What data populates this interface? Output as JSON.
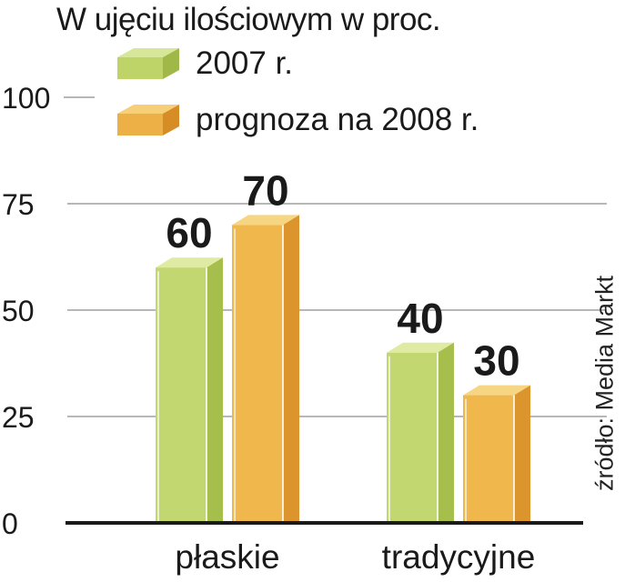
{
  "chart_data": {
    "type": "bar",
    "title": "W ujęciu ilościowym w proc.",
    "categories": [
      "płaskie",
      "tradycyjne"
    ],
    "series": [
      {
        "name": "2007 r.",
        "values": [
          60,
          40
        ],
        "color": "#b6cf5c"
      },
      {
        "name": "prognoza na 2008 r.",
        "values": [
          70,
          30
        ],
        "color": "#e9a43a"
      }
    ],
    "yticks": [
      0,
      25,
      50,
      75,
      100
    ],
    "ylim": [
      0,
      100
    ],
    "xlabel": "",
    "ylabel": "",
    "grid": true,
    "legend_position": "top-left",
    "source": "źródło: Media Markt"
  }
}
